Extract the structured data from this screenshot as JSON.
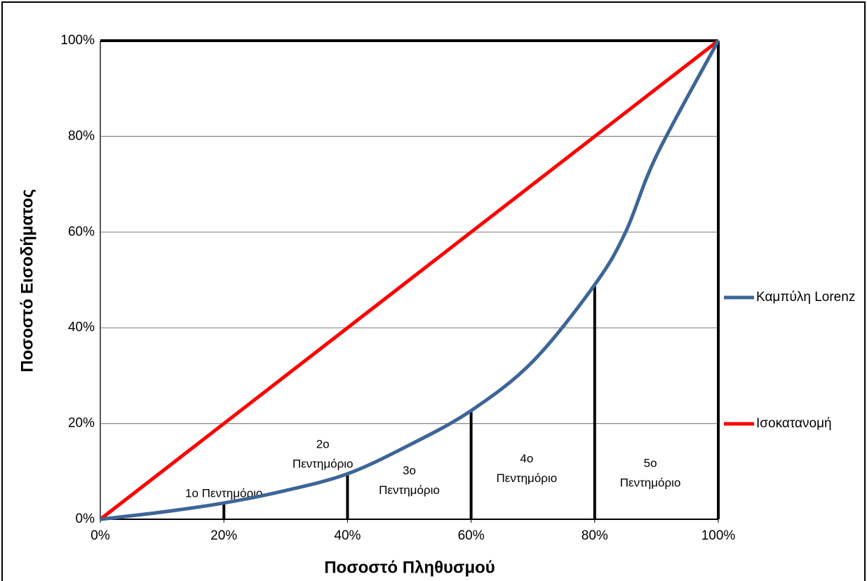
{
  "chart_data": {
    "type": "line",
    "xlabel": "Ποσοστό Πληθυσμού",
    "ylabel": "Ποσοστό Εισοδήματος",
    "xlim": [
      0,
      100
    ],
    "ylim": [
      0,
      100
    ],
    "xticks": [
      {
        "value": 0,
        "label": "0%"
      },
      {
        "value": 20,
        "label": "20%"
      },
      {
        "value": 40,
        "label": "40%"
      },
      {
        "value": 60,
        "label": "60%"
      },
      {
        "value": 80,
        "label": "80%"
      },
      {
        "value": 100,
        "label": "100%"
      }
    ],
    "yticks": [
      {
        "value": 0,
        "label": "0%"
      },
      {
        "value": 20,
        "label": "20%"
      },
      {
        "value": 40,
        "label": "40%"
      },
      {
        "value": 60,
        "label": "60%"
      },
      {
        "value": 80,
        "label": "80%"
      },
      {
        "value": 100,
        "label": "100%"
      }
    ],
    "grid": true,
    "legend": "right",
    "series": [
      {
        "name": "Καμπύλη Lorenz",
        "color": "#3d6598",
        "x": [
          0,
          10,
          20,
          30,
          40,
          50,
          60,
          70,
          80,
          85,
          90,
          100
        ],
        "values": [
          0,
          1.5,
          3.4,
          6,
          9.5,
          15.5,
          22.7,
          33,
          49,
          60,
          76,
          100
        ]
      },
      {
        "name": "Ισοκατανομή",
        "color": "#ff0000",
        "x": [
          0,
          100
        ],
        "values": [
          0,
          100
        ]
      }
    ],
    "dividers": {
      "x": [
        20,
        40,
        60,
        80
      ],
      "values": [
        3.4,
        9.5,
        22.7,
        49
      ],
      "color": "#000000"
    },
    "annotations": [
      {
        "lines": [
          "1ο Πεντημόριο"
        ]
      },
      {
        "lines": [
          "2ο",
          "Πεντημόριο"
        ]
      },
      {
        "lines": [
          "3ο",
          "Πεντημόριο"
        ]
      },
      {
        "lines": [
          "4ο",
          "Πεντημόριο"
        ]
      },
      {
        "lines": [
          "5ο",
          "Πεντημόριο"
        ]
      }
    ]
  }
}
